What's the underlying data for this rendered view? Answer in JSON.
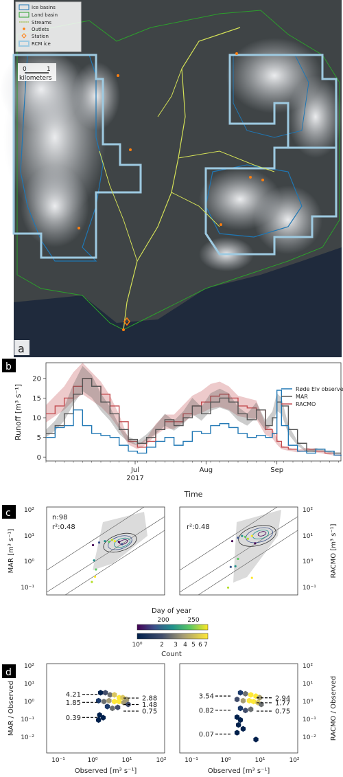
{
  "panels": {
    "a": "a",
    "b": "b",
    "c": "c",
    "d": "d"
  },
  "map": {
    "legend": [
      "Ice basins",
      "Land basin",
      "Streams",
      "Outlets",
      "Station",
      "RCM ice"
    ],
    "scale": {
      "start": "0",
      "end": "1",
      "unit": "kilometers"
    },
    "colors": {
      "ice_basin": "#1f77b4",
      "land_basin": "#2ca02c",
      "streams": "#d4e157",
      "outlets": "#ff7f0e",
      "rcm_ice": "#9ecae1"
    }
  },
  "chart_data": [
    {
      "id": "timeseries",
      "type": "line",
      "xlabel": "Time",
      "ylabel": "Runoff [m³ s⁻¹]",
      "ylim": [
        -1,
        24
      ],
      "yticks": [
        0,
        5,
        10,
        15,
        20
      ],
      "xlim": [
        "2017-05-23",
        "2017-09-29"
      ],
      "xticks": [
        {
          "date": "2017-07-01",
          "label": "Jul",
          "sublabel": "2017"
        },
        {
          "date": "2017-08-01",
          "label": "Aug"
        },
        {
          "date": "2017-09-01",
          "label": "Sep"
        }
      ],
      "legend_position": "top-right",
      "series": [
        {
          "name": "Røde Elv observed",
          "color": "#1f77b4",
          "x": [
            "2017-05-23",
            "2017-05-27",
            "2017-05-31",
            "2017-06-04",
            "2017-06-08",
            "2017-06-12",
            "2017-06-16",
            "2017-06-20",
            "2017-06-24",
            "2017-06-28",
            "2017-07-02",
            "2017-07-06",
            "2017-07-10",
            "2017-07-14",
            "2017-07-18",
            "2017-07-22",
            "2017-07-26",
            "2017-07-30",
            "2017-08-03",
            "2017-08-07",
            "2017-08-11",
            "2017-08-15",
            "2017-08-19",
            "2017-08-23",
            "2017-08-27",
            "2017-08-30",
            "2017-09-01",
            "2017-09-03",
            "2017-09-06",
            "2017-09-10",
            "2017-09-14",
            "2017-09-18",
            "2017-09-22",
            "2017-09-26",
            "2017-09-29"
          ],
          "y": [
            5,
            7.5,
            8,
            12,
            8,
            6,
            5.5,
            5,
            3,
            1.5,
            1,
            2.5,
            4,
            5,
            3,
            4,
            6.5,
            6,
            8,
            8.5,
            7.5,
            6,
            5,
            5.5,
            5,
            6,
            17,
            8,
            3,
            1.5,
            1,
            2,
            1.5,
            0.5,
            0.3
          ]
        },
        {
          "name": "MAR",
          "color": "#555555",
          "x": [
            "2017-05-23",
            "2017-05-27",
            "2017-05-31",
            "2017-06-04",
            "2017-06-08",
            "2017-06-12",
            "2017-06-16",
            "2017-06-20",
            "2017-06-24",
            "2017-06-28",
            "2017-07-02",
            "2017-07-06",
            "2017-07-10",
            "2017-07-14",
            "2017-07-18",
            "2017-07-22",
            "2017-07-26",
            "2017-07-30",
            "2017-08-03",
            "2017-08-07",
            "2017-08-11",
            "2017-08-15",
            "2017-08-19",
            "2017-08-23",
            "2017-08-27",
            "2017-08-30",
            "2017-09-01",
            "2017-09-03",
            "2017-09-06",
            "2017-09-10",
            "2017-09-14",
            "2017-09-18",
            "2017-09-22",
            "2017-09-26",
            "2017-09-29"
          ],
          "y": [
            6,
            8,
            11,
            16,
            20,
            18,
            14,
            11,
            7,
            4.5,
            3.5,
            5,
            7,
            9.5,
            8,
            10,
            13,
            11,
            14,
            15,
            14,
            11,
            9.5,
            12,
            8,
            10,
            14,
            13,
            7,
            3.5,
            1.5,
            2,
            1.5,
            1,
            1
          ]
        },
        {
          "name": "RACMO",
          "color": "#c44e52",
          "x": [
            "2017-05-23",
            "2017-05-27",
            "2017-05-31",
            "2017-06-04",
            "2017-06-08",
            "2017-06-12",
            "2017-06-16",
            "2017-06-20",
            "2017-06-24",
            "2017-06-28",
            "2017-07-02",
            "2017-07-06",
            "2017-07-10",
            "2017-07-14",
            "2017-07-18",
            "2017-07-22",
            "2017-07-26",
            "2017-07-30",
            "2017-08-03",
            "2017-08-07",
            "2017-08-11",
            "2017-08-15",
            "2017-08-19",
            "2017-08-23",
            "2017-08-27",
            "2017-08-30",
            "2017-09-01",
            "2017-09-03",
            "2017-09-06",
            "2017-09-10",
            "2017-09-14",
            "2017-09-18",
            "2017-09-22",
            "2017-09-26",
            "2017-09-29"
          ],
          "y": [
            11,
            13,
            15,
            18,
            20,
            18,
            16,
            13,
            9,
            4,
            2.5,
            4,
            7,
            9,
            9,
            11,
            13,
            14,
            15.5,
            16,
            15,
            13,
            12.5,
            12,
            7,
            6,
            4,
            2.5,
            2,
            1.5,
            2,
            1.5,
            1,
            0.5,
            0.3
          ]
        }
      ]
    },
    {
      "id": "scatter-mar",
      "type": "scatter",
      "xlabel": "",
      "ylabel": "MAR [m³ s⁻¹]",
      "xscale": "log",
      "yscale": "log",
      "xlim": [
        0.05,
        200
      ],
      "ylim": [
        0.05,
        200
      ],
      "yticks": [
        "10⁻¹",
        "10⁰",
        "10¹",
        "10²"
      ],
      "annotations": [
        "n:98",
        "r²:0.48"
      ],
      "points": [
        [
          1.3,
          5.5
        ],
        [
          2,
          7
        ],
        [
          3,
          8
        ],
        [
          4,
          7.5
        ],
        [
          5,
          9
        ],
        [
          6,
          8
        ],
        [
          8,
          7.5
        ],
        [
          10,
          6
        ],
        [
          1.4,
          1.3
        ],
        [
          1.6,
          0.55
        ],
        [
          1.2,
          0.17
        ],
        [
          1.5,
          0.28
        ]
      ]
    },
    {
      "id": "scatter-racmo",
      "type": "scatter",
      "xlabel": "",
      "ylabel": "RACMO [m³ s⁻¹]",
      "xscale": "log",
      "yscale": "log",
      "xlim": [
        0.05,
        200
      ],
      "ylim": [
        0.05,
        200
      ],
      "yticks": [
        "10⁻¹",
        "10⁰",
        "10¹",
        "10²"
      ],
      "annotations": [
        "r²:0.48"
      ],
      "points": [
        [
          2,
          8
        ],
        [
          3,
          11
        ],
        [
          4,
          13
        ],
        [
          5,
          12
        ],
        [
          6,
          10
        ],
        [
          8,
          13
        ],
        [
          10,
          6.5
        ],
        [
          1.8,
          0.7
        ],
        [
          2.5,
          0.75
        ],
        [
          3,
          1.5
        ],
        [
          1.5,
          0.1
        ],
        [
          8,
          0.25
        ]
      ]
    },
    {
      "id": "ratio-mar",
      "type": "heatmap",
      "xlabel": "Observed [m³ s⁻¹]",
      "ylabel": "MAR / Observed",
      "xscale": "log",
      "yscale": "log",
      "xticks": [
        "10⁻¹",
        "10⁰",
        "10¹",
        "10²"
      ],
      "yticks": [
        "10⁻²",
        "10⁻¹",
        "10⁰",
        "10¹",
        "10²"
      ],
      "percentile_labels": [
        "4.21",
        "1.85",
        "0.39",
        "2.88",
        "1.48",
        "0.75"
      ],
      "percentile_values": [
        4.21,
        1.85,
        0.39,
        2.88,
        1.48,
        0.75
      ]
    },
    {
      "id": "ratio-racmo",
      "type": "heatmap",
      "xlabel": "Observed [m³ s⁻¹]",
      "ylabel": "RACMO / Observed",
      "xscale": "log",
      "yscale": "log",
      "xticks": [
        "10⁻¹",
        "10⁰",
        "10¹",
        "10²"
      ],
      "yticks": [
        "10⁻²",
        "10⁻¹",
        "10⁰",
        "10¹",
        "10²"
      ],
      "percentile_labels": [
        "3.54",
        "0.82",
        "0.07",
        "2.94",
        "1.77",
        "0.75"
      ],
      "percentile_values": [
        3.54,
        0.82,
        0.07,
        2.94,
        1.77,
        0.75
      ]
    }
  ],
  "colorbars": {
    "doy": {
      "label": "Day of year",
      "ticks": [
        "200",
        "250"
      ]
    },
    "count": {
      "label": "Count",
      "ticks": [
        "10⁰",
        "2",
        "3",
        "4",
        "5",
        "6",
        "7"
      ]
    }
  }
}
